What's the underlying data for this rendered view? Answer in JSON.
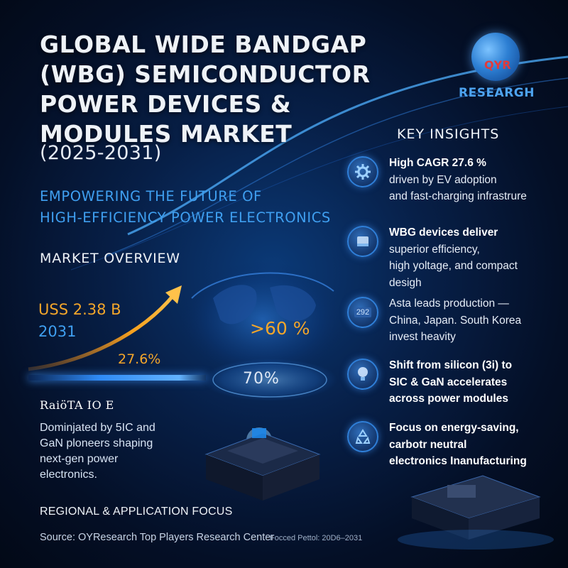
{
  "title": {
    "lines": [
      "GLOBAL WIDE BANDGAP",
      "(WBG) SEMICONDUCTOR",
      "POWER DEVICES &",
      "MODULES MARKET"
    ],
    "years": "(2025-2031)"
  },
  "subtitle": {
    "lines": [
      "EMPOWERING THE FUTURE OF",
      "HIGH-EFFICIENCY POWER ELECTRONICS"
    ]
  },
  "logo": {
    "name": "QYR",
    "sub": "RESEARGH"
  },
  "market_overview": {
    "heading": "MARKET OVERVIEW",
    "value": "USS 2.38 B",
    "year": "2031",
    "cagr": "27.6%",
    "ratio_label": "RaiöTA IO E",
    "description": [
      "Dominjated by 5IC and",
      "GaN ploneers shaping",
      "next-gen power",
      "electronics."
    ]
  },
  "center": {
    "globe_percent": ">60 %",
    "disc_percent": "70%"
  },
  "key_insights": {
    "heading": "KEY INSIGHTS",
    "items": [
      {
        "icon": "gear-icon",
        "lines": [
          "High CAGR 27.6 %",
          "driven by EV adoption",
          "and fast-charging infrastrure"
        ]
      },
      {
        "icon": "chip-icon",
        "lines": [
          "WBG devices deliver",
          "superior efficiency,",
          "high yoltage, and compact",
          "desigh"
        ]
      },
      {
        "icon": "map-icon",
        "icon_text": "292",
        "lines": [
          "Asta leads production —",
          "China, Japan. South Korea",
          "invest heavity"
        ]
      },
      {
        "icon": "bulb-icon",
        "lines": [
          "Shift from silicon (3i) to",
          "SIC & GaN accelerates",
          "across power modules"
        ]
      },
      {
        "icon": "recycle-icon",
        "lines": [
          "Focus on energy-saving,",
          "carbotr neutral",
          "electronics Inanufacturing"
        ]
      }
    ]
  },
  "footer": {
    "regional": "REGIONAL & APPLICATION FOCUS",
    "source": "Source: OYResearch Top Players Research Center",
    "forecast": "Focced Pettol: 20D6–2031"
  },
  "colors": {
    "accent_orange": "#f3a62a",
    "accent_blue": "#3f9ff0",
    "background_dark": "#040f26"
  }
}
